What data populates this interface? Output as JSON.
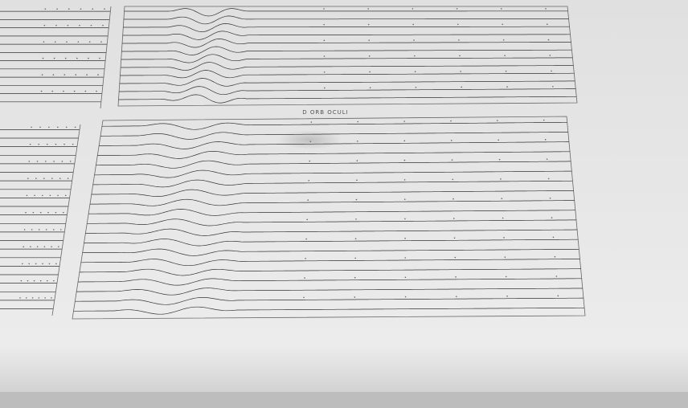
{
  "label": "D ORB OCULI"
}
